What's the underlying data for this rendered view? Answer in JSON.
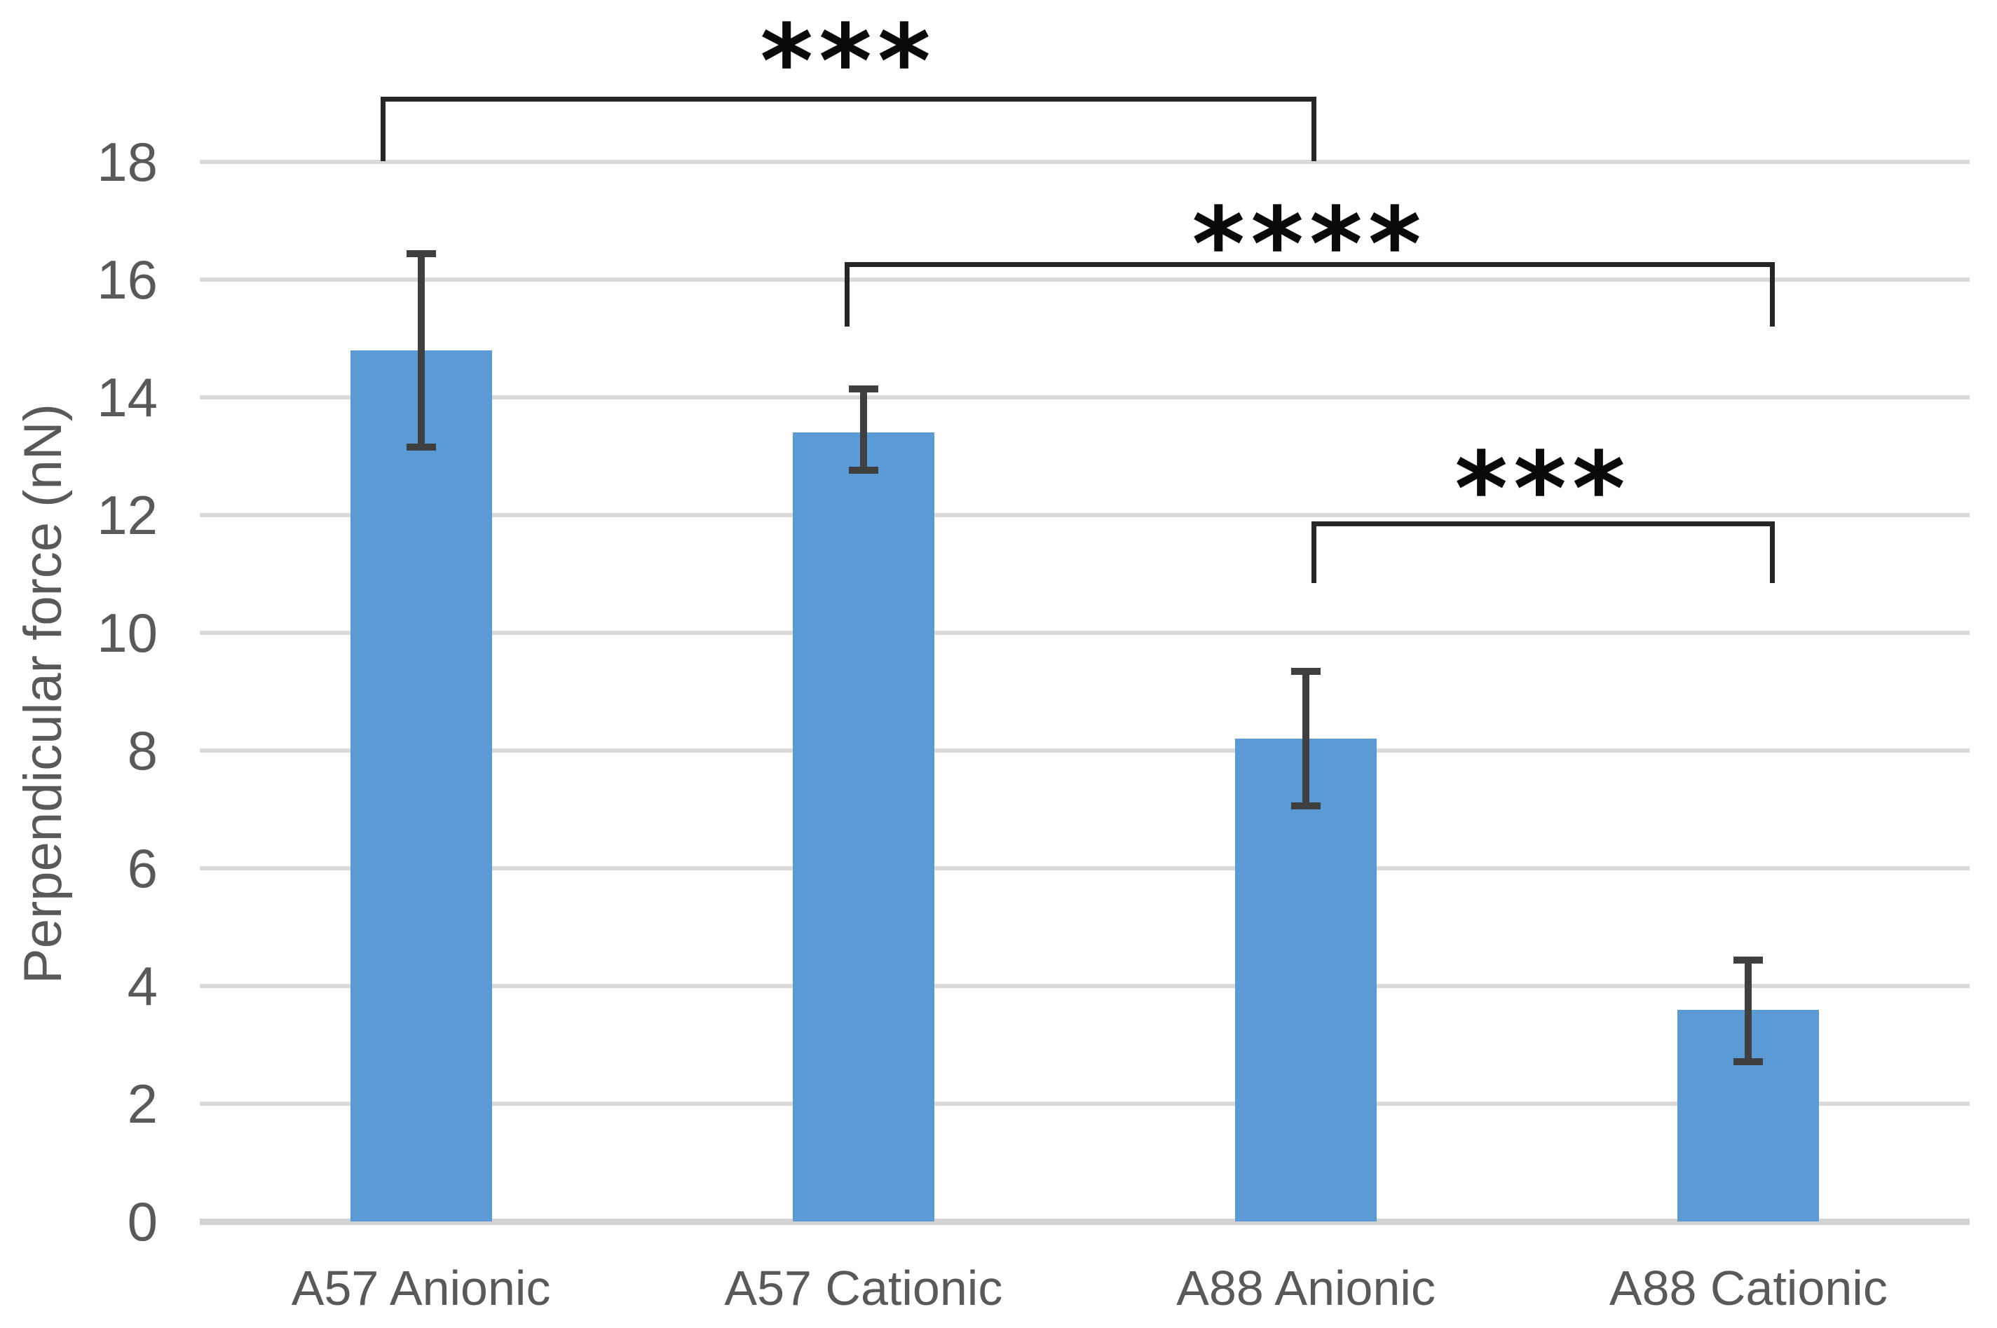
{
  "page": {
    "background": "#ffffff"
  },
  "chart_data": {
    "type": "bar",
    "title": "",
    "xlabel": "",
    "ylabel": "Perpendicular force (nN)",
    "categories": [
      "A57 Anionic",
      "A57 Cationic",
      "A88 Anionic",
      "A88 Cationic"
    ],
    "values": [
      14.8,
      13.4,
      8.2,
      3.6
    ],
    "error_upper": [
      16.5,
      14.2,
      9.4,
      4.5
    ],
    "error_lower": [
      13.1,
      12.7,
      7.0,
      2.65
    ],
    "ylim": [
      0,
      18
    ],
    "yticks": [
      0,
      2,
      4,
      6,
      8,
      10,
      12,
      14,
      16,
      18
    ],
    "grid": true,
    "legend": false,
    "bar_color": "#5b9bd5",
    "error_bar_color": "#3f3f3f",
    "gridline_color": "#d9d9d9",
    "axis_line_color": "#d3d3d3",
    "tick_label_color": "#595959",
    "category_label_color": "#595959",
    "significance_bracket_color": "#262626",
    "significance": [
      {
        "between": [
          "A57 Anionic",
          "A88 Anionic"
        ],
        "label": "***"
      },
      {
        "between": [
          "A57 Cationic",
          "A88 Cationic"
        ],
        "label": "****"
      },
      {
        "between": [
          "A88 Anionic",
          "A88 Cationic"
        ],
        "label": "***"
      }
    ]
  }
}
